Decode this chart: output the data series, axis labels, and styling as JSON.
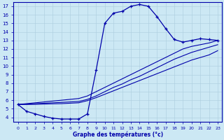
{
  "xlabel": "Graphe des températures (°c)",
  "xlim": [
    -0.5,
    23.5
  ],
  "ylim": [
    3.5,
    17.5
  ],
  "yticks": [
    4,
    5,
    6,
    7,
    8,
    9,
    10,
    11,
    12,
    13,
    14,
    15,
    16,
    17
  ],
  "xticks": [
    0,
    1,
    2,
    3,
    4,
    5,
    6,
    7,
    8,
    9,
    10,
    11,
    12,
    13,
    14,
    15,
    16,
    17,
    18,
    19,
    20,
    21,
    22,
    23
  ],
  "background_color": "#cce8f4",
  "line_color": "#0000aa",
  "grid_color": "#aaccdd",
  "main_x": [
    0,
    1,
    2,
    3,
    4,
    5,
    6,
    7,
    8,
    9,
    10,
    11,
    12,
    13,
    14,
    15,
    16,
    17,
    18,
    19,
    20,
    21,
    22,
    23
  ],
  "main_y": [
    5.5,
    4.7,
    4.4,
    4.1,
    3.9,
    3.8,
    3.8,
    3.8,
    4.4,
    9.5,
    15.0,
    16.2,
    16.4,
    17.0,
    17.2,
    17.0,
    15.8,
    14.4,
    13.1,
    12.8,
    13.0,
    13.2,
    13.1,
    13.0
  ],
  "diag1_x": [
    0,
    1,
    2,
    3,
    4,
    5,
    6,
    7,
    8,
    9,
    10,
    11,
    12,
    13,
    14,
    15,
    16,
    17,
    18,
    19,
    20,
    21,
    22,
    23
  ],
  "diag1_y": [
    5.5,
    5.6,
    5.7,
    5.8,
    5.9,
    6.0,
    6.1,
    6.2,
    6.5,
    7.0,
    7.5,
    8.0,
    8.5,
    9.0,
    9.5,
    10.0,
    10.5,
    11.0,
    11.5,
    12.0,
    12.3,
    12.5,
    12.7,
    13.0
  ],
  "diag2_x": [
    0,
    1,
    2,
    3,
    4,
    5,
    6,
    7,
    8,
    9,
    10,
    11,
    12,
    13,
    14,
    15,
    16,
    17,
    18,
    19,
    20,
    21,
    22,
    23
  ],
  "diag2_y": [
    5.5,
    5.55,
    5.6,
    5.65,
    5.7,
    5.75,
    5.8,
    5.85,
    6.1,
    6.5,
    7.0,
    7.5,
    7.9,
    8.4,
    8.8,
    9.3,
    9.8,
    10.3,
    10.8,
    11.2,
    11.6,
    11.9,
    12.2,
    12.5
  ],
  "diag3_x": [
    0,
    1,
    2,
    3,
    4,
    5,
    6,
    7,
    8,
    9,
    10,
    11,
    12,
    13,
    14,
    15,
    16,
    17,
    18,
    19,
    20,
    21,
    22,
    23
  ],
  "diag3_y": [
    5.5,
    5.5,
    5.52,
    5.55,
    5.58,
    5.6,
    5.65,
    5.7,
    5.95,
    6.3,
    6.7,
    7.1,
    7.5,
    7.9,
    8.3,
    8.7,
    9.1,
    9.5,
    9.9,
    10.3,
    10.7,
    11.0,
    11.3,
    11.8
  ],
  "figwidth": 3.2,
  "figheight": 2.0,
  "dpi": 100
}
